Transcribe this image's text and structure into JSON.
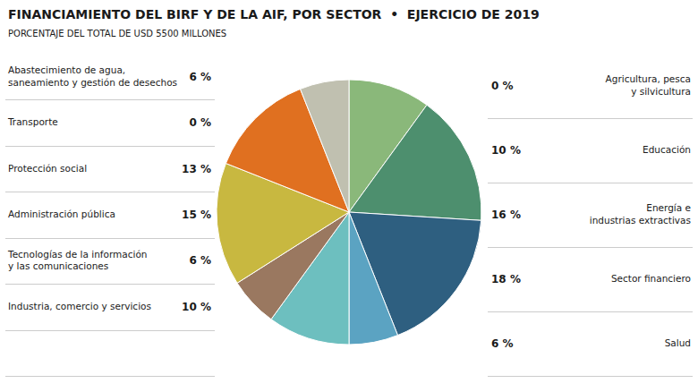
{
  "chart_data": {
    "type": "pie",
    "title": "FINANCIAMIENTO DEL BIRF Y DE LA AIF, POR SECTOR  •  EJERCICIO DE 2019",
    "subtitle": "PORCENTAJE DEL TOTAL DE USD 5500 MILLONES",
    "categories": [
      "Agricultura, pesca\ny silvicultura",
      "Educación",
      "Energía e\nindustrias extractivas",
      "Sector financiero",
      "Salud",
      "Industria, comercio y servicios",
      "Tecnologías de la información\ny las comunicaciones",
      "Administración pública",
      "Protección social",
      "Transporte",
      "Abastecimiento de agua,\nsaneamiento y gestión de desechos"
    ],
    "values": [
      0,
      10,
      16,
      18,
      6,
      10,
      6,
      15,
      13,
      0,
      6
    ],
    "value_labels": [
      "0 %",
      "10 %",
      "16 %",
      "18 %",
      "6 %",
      "10 %",
      "6 %",
      "15 %",
      "13 %",
      "0 %",
      "6 %"
    ],
    "colors": [
      "#b5b58a",
      "#8ab87a",
      "#4d8f6e",
      "#2e5f80",
      "#5ba3c2",
      "#6dbfbf",
      "#9a7860",
      "#c8b840",
      "#e07020",
      "#c03020",
      "#c0c0b0"
    ],
    "data_labels": true
  }
}
